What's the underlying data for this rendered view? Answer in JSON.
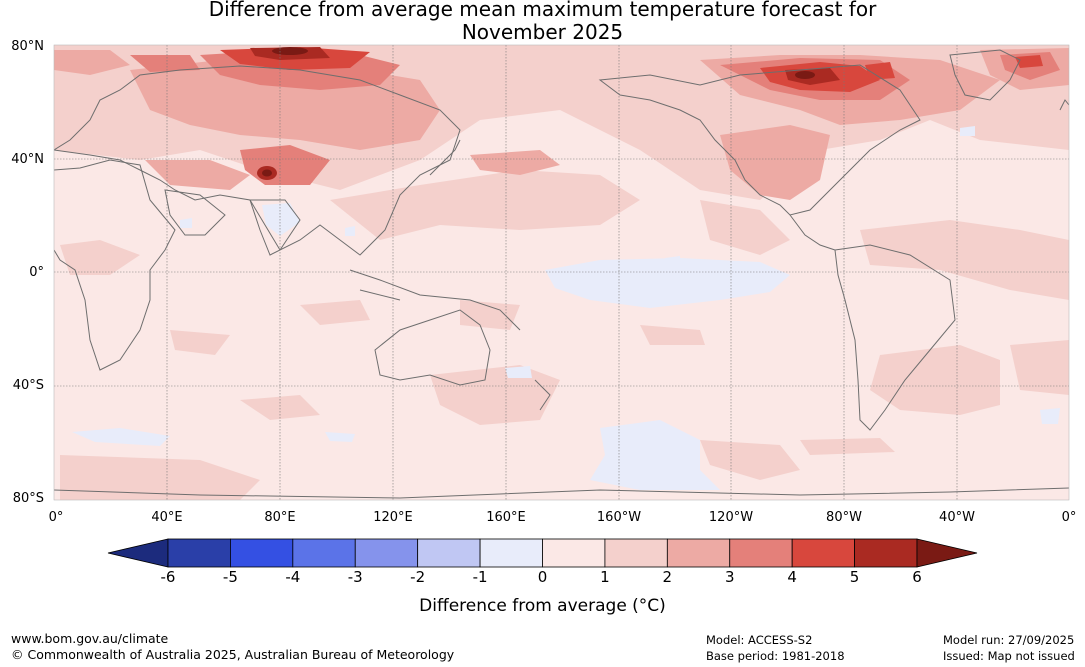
{
  "title": {
    "line1": "Difference from average mean maximum temperature forecast for",
    "line2": "November 2025"
  },
  "map": {
    "lat_labels": [
      "80°N",
      "40°N",
      "0°",
      "40°S",
      "80°S"
    ],
    "lon_labels": [
      "0°",
      "40°E",
      "80°E",
      "120°E",
      "160°E",
      "160°W",
      "120°W",
      "80°W",
      "40°W",
      "0°"
    ],
    "land_outline_color": "#6e6e6e",
    "grid_color": "#777777"
  },
  "colorbar": {
    "ticks": [
      "-6",
      "-5",
      "-4",
      "-3",
      "-2",
      "-1",
      "0",
      "1",
      "2",
      "3",
      "4",
      "5",
      "6"
    ],
    "colors": [
      "#1c2b7d",
      "#2a3fa8",
      "#3450e3",
      "#5b73e8",
      "#8593ec",
      "#c0c7f3",
      "#e8ecfa",
      "#fbe8e6",
      "#f4d0cc",
      "#edaaa4",
      "#e4807a",
      "#d8473d",
      "#aa2a22",
      "#7a1a14"
    ],
    "label": "Difference from average (°C)"
  },
  "footer": {
    "url": "www.bom.gov.au/climate",
    "copyright": "© Commonwealth of Australia 2025, Australian Bureau of Meteorology",
    "model": "Model: ACCESS-S2",
    "base_period": "Base period: 1981-2018",
    "model_run": "Model run: 27/09/2025",
    "issued": "Issued: Map not issued"
  }
}
